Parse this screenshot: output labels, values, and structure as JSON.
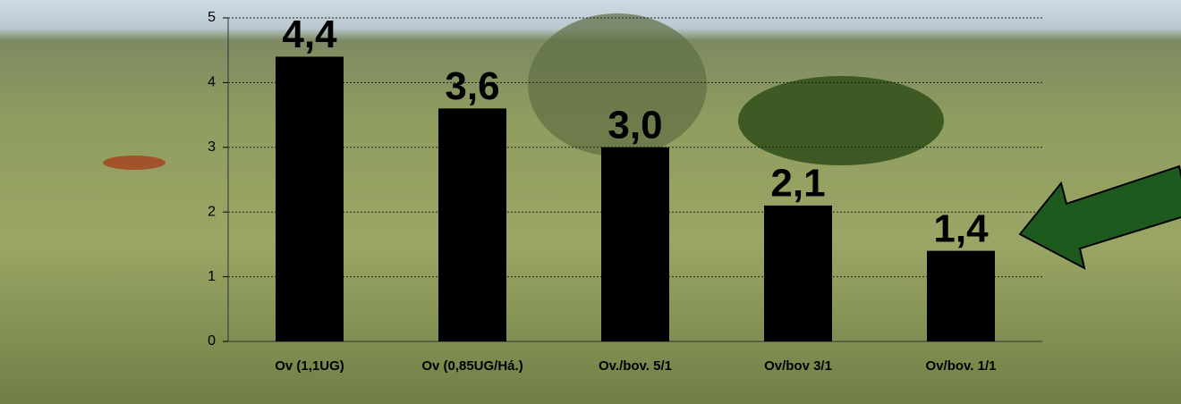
{
  "chart_data": {
    "type": "bar",
    "categories": [
      "Ov (1,1UG)",
      "Ov (0,85UG/Há.)",
      "Ov./bov. 5/1",
      "Ov/bov 3/1",
      "Ov/bov. 1/1"
    ],
    "values": [
      4.4,
      3.6,
      3.0,
      2.1,
      1.4
    ],
    "value_labels": [
      "4,4",
      "3,6",
      "3,0",
      "2,1",
      "1,4"
    ],
    "color": "#000000",
    "ylim": [
      0,
      5
    ],
    "yticks": [
      0,
      1,
      2,
      3,
      4,
      5
    ],
    "grid": true
  }
}
